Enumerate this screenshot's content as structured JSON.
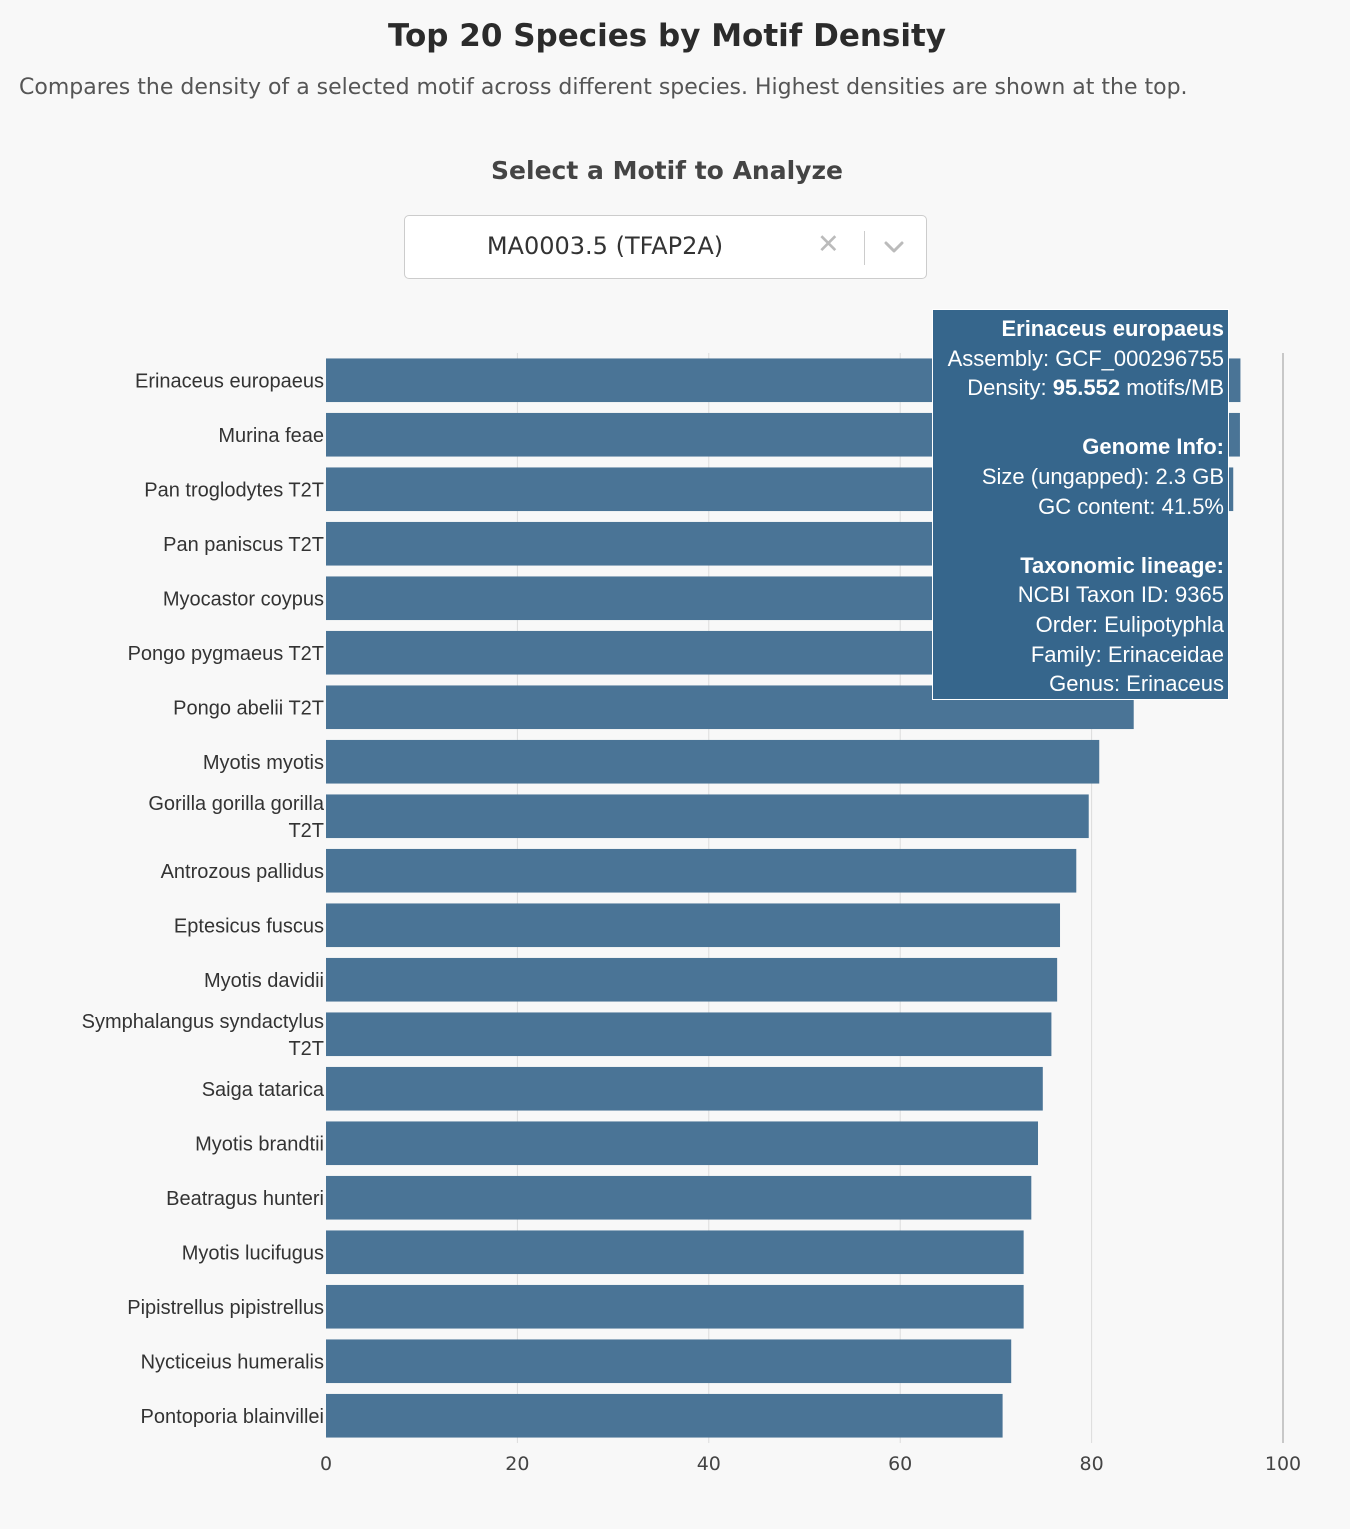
{
  "header": {
    "title": "Top 20 Species by Motif Density",
    "subtitle": "Compares the density of a selected motif across different species. Highest densities are shown at the top."
  },
  "selector": {
    "label": "Select a Motif to Analyze",
    "value": "MA0003.5 (TFAP2A)",
    "clear_icon": "✕"
  },
  "tooltip": {
    "species": "Erinaceus europaeus",
    "assembly": "Assembly: GCF_000296755",
    "density_prefix": "Density: ",
    "density_value": "95.552",
    "density_unit": " motifs/MB",
    "genome_heading": "Genome Info:",
    "size": "Size (ungapped): 2.3 GB",
    "gc": "GC content: 41.5%",
    "taxonomy_heading": "Taxonomic lineage:",
    "taxon_id": "NCBI Taxon ID: 9365",
    "order": "Order: Eulipotyphla",
    "family": "Family: Erinaceidae",
    "genus": "Genus: Erinaceus"
  },
  "chart_data": {
    "type": "bar",
    "orientation": "horizontal",
    "title": "Top 20 Species by Motif Density",
    "xlabel": "",
    "ylabel": "",
    "xlim": [
      0,
      100
    ],
    "x_ticks": [
      0,
      20,
      40,
      60,
      80,
      100
    ],
    "grid": true,
    "bar_color": "#4a7496",
    "categories": [
      [
        "Erinaceus europaeus"
      ],
      [
        "Murina feae"
      ],
      [
        "Pan troglodytes T2T"
      ],
      [
        "Pan paniscus T2T"
      ],
      [
        "Myocastor coypus"
      ],
      [
        "Pongo pygmaeus T2T"
      ],
      [
        "Pongo abelii T2T"
      ],
      [
        "Myotis myotis"
      ],
      [
        "Gorilla gorilla gorilla",
        "T2T"
      ],
      [
        "Antrozous pallidus"
      ],
      [
        "Eptesicus fuscus"
      ],
      [
        "Myotis davidii"
      ],
      [
        "Symphalangus syndactylus",
        "T2T"
      ],
      [
        "Saiga tatarica"
      ],
      [
        "Myotis brandtii"
      ],
      [
        "Beatragus hunteri"
      ],
      [
        "Myotis lucifugus"
      ],
      [
        "Pipistrellus pipistrellus"
      ],
      [
        "Nycticeius humeralis"
      ],
      [
        "Pontoporia blainvillei"
      ]
    ],
    "values": [
      95.552,
      95.5,
      94.8,
      94.0,
      92.5,
      86.5,
      84.4,
      80.8,
      79.7,
      78.4,
      76.7,
      76.4,
      75.8,
      74.9,
      74.4,
      73.7,
      72.9,
      72.9,
      71.6,
      70.7
    ]
  }
}
